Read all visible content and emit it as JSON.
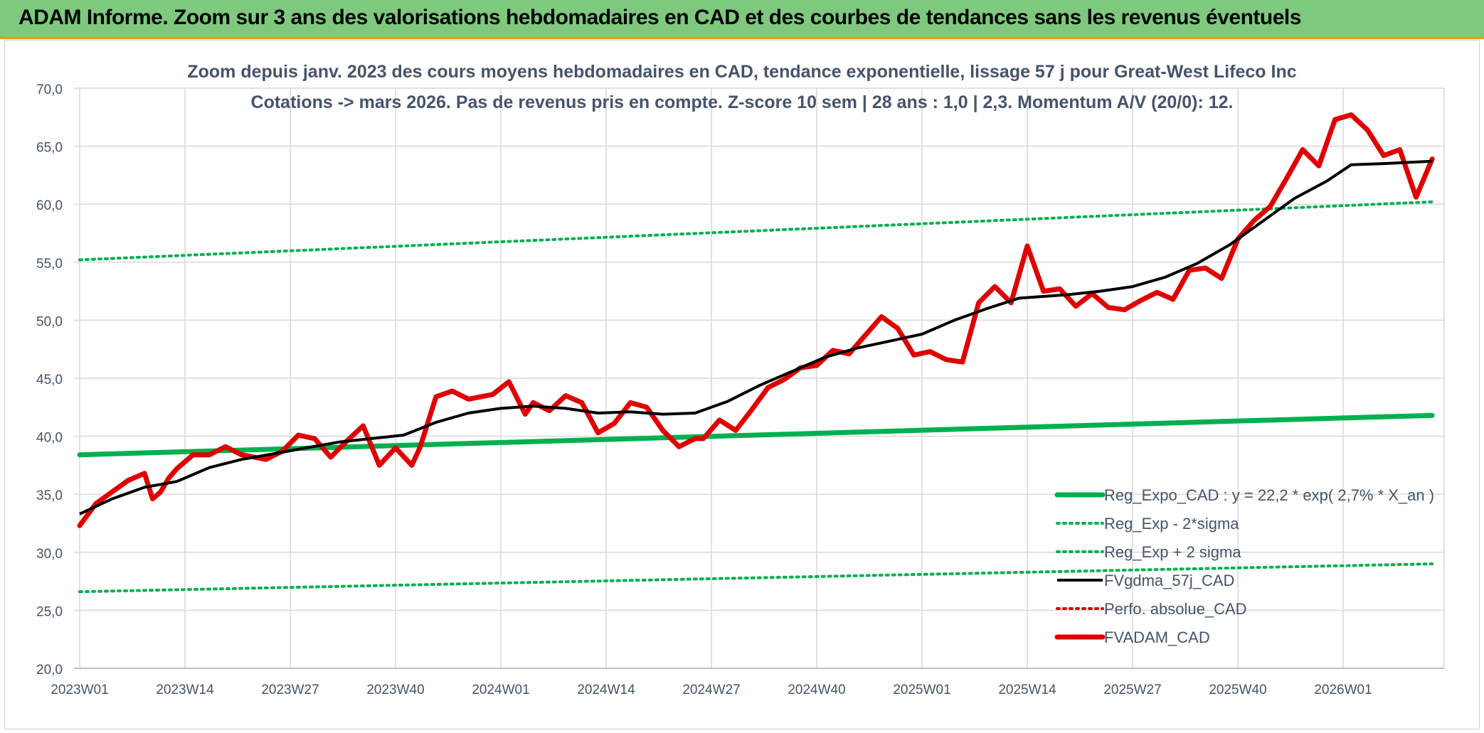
{
  "header": {
    "title": "ADAM Informe. Zoom sur 3 ans des valorisations hebdomadaires en CAD et des courbes de tendances sans les revenus éventuels"
  },
  "colors": {
    "header_bg": "#7ec97e",
    "reg_green": "#00b050",
    "price_red": "#e00000",
    "moving_avg": "#000000",
    "grid": "#d9d9d9"
  },
  "chart_data": {
    "type": "line",
    "title": "Zoom depuis janv. 2023 des cours moyens hebdomadaires en CAD, tendance exponentielle, lissage 57 j pour Great-West Lifeco Inc",
    "subtitle": "Cotations -> mars 2026. Pas de revenus pris en compte. Z-score 10 sem | 28 ans : 1,0 | 2,3. Momentum A/V (20/0): 12.",
    "xlabel": "",
    "ylabel": "",
    "ylim": [
      20,
      70
    ],
    "yticks": [
      "20,0",
      "25,0",
      "30,0",
      "35,0",
      "40,0",
      "45,0",
      "50,0",
      "55,0",
      "60,0",
      "65,0",
      "70,0"
    ],
    "xticks": [
      "2023W01",
      "2023W14",
      "2023W27",
      "2023W40",
      "2024W01",
      "2024W14",
      "2024W27",
      "2024W40",
      "2025W01",
      "2025W14",
      "2025W27",
      "2025W40",
      "2026W01"
    ],
    "grid": true,
    "legend_position": "bottom-right",
    "legend": [
      {
        "label": "Reg_Expo_CAD : y = 22,2 * exp( 2,7% *  X_an )",
        "color": "#00b050",
        "style": "solid-thick"
      },
      {
        "label": "Reg_Exp - 2*sigma",
        "color": "#00b050",
        "style": "dotted"
      },
      {
        "label": "Reg_Exp + 2 sigma",
        "color": "#00b050",
        "style": "dotted"
      },
      {
        "label": "FVgdma_57j_CAD",
        "color": "#000000",
        "style": "solid"
      },
      {
        "label": "Perfo. absolue_CAD",
        "color": "#e00000",
        "style": "dotted"
      },
      {
        "label": "FVADAM_CAD",
        "color": "#e00000",
        "style": "solid-thick"
      }
    ],
    "series": [
      {
        "name": "Reg_Expo_CAD : y = 22,2 * exp( 2,7% *  X_an )",
        "x": [
          "2023W01",
          "2026W12"
        ],
        "values": [
          38.4,
          41.8
        ]
      },
      {
        "name": "Reg_Exp - 2*sigma",
        "x": [
          "2023W01",
          "2026W12"
        ],
        "values": [
          26.6,
          29.0
        ]
      },
      {
        "name": "Reg_Exp + 2 sigma",
        "x": [
          "2023W01",
          "2026W12"
        ],
        "values": [
          55.2,
          60.2
        ]
      },
      {
        "name": "FVgdma_57j_CAD",
        "x": [
          "2023W01",
          "2023W05",
          "2023W09",
          "2023W13",
          "2023W17",
          "2023W21",
          "2023W25",
          "2023W29",
          "2023W33",
          "2023W37",
          "2023W41",
          "2023W45",
          "2023W49",
          "2024W01",
          "2024W05",
          "2024W09",
          "2024W13",
          "2024W17",
          "2024W21",
          "2024W25",
          "2024W29",
          "2024W33",
          "2024W37",
          "2024W41",
          "2024W45",
          "2024W49",
          "2025W01",
          "2025W05",
          "2025W09",
          "2025W13",
          "2025W15",
          "2025W19",
          "2025W23",
          "2025W27",
          "2025W31",
          "2025W35",
          "2025W39",
          "2025W43",
          "2025W47",
          "2025W51",
          "2026W02",
          "2026W06",
          "2026W12"
        ],
        "values": [
          33.3,
          34.6,
          35.6,
          36.1,
          37.3,
          38.0,
          38.5,
          39.0,
          39.5,
          39.8,
          40.1,
          41.2,
          42.0,
          42.4,
          42.6,
          42.4,
          42.0,
          42.1,
          41.9,
          42.0,
          43.0,
          44.4,
          45.6,
          46.8,
          47.6,
          48.2,
          48.8,
          50.0,
          51.0,
          51.9,
          52.0,
          52.2,
          52.5,
          52.9,
          53.7,
          54.9,
          56.5,
          58.5,
          60.5,
          62.0,
          63.4,
          63.5,
          63.7
        ]
      },
      {
        "name": "FVADAM_CAD",
        "x": [
          "2023W01",
          "2023W03",
          "2023W05",
          "2023W07",
          "2023W09",
          "2023W10",
          "2023W11",
          "2023W12",
          "2023W13",
          "2023W15",
          "2023W17",
          "2023W19",
          "2023W21",
          "2023W24",
          "2023W26",
          "2023W28",
          "2023W30",
          "2023W32",
          "2023W34",
          "2023W36",
          "2023W38",
          "2023W40",
          "2023W42",
          "2023W43",
          "2023W45",
          "2023W47",
          "2023W49",
          "2023W52",
          "2024W02",
          "2024W04",
          "2024W05",
          "2024W07",
          "2024W09",
          "2024W11",
          "2024W13",
          "2024W15",
          "2024W17",
          "2024W19",
          "2024W21",
          "2024W23",
          "2024W25",
          "2024W26",
          "2024W28",
          "2024W30",
          "2024W32",
          "2024W34",
          "2024W36",
          "2024W38",
          "2024W40",
          "2024W42",
          "2024W44",
          "2024W46",
          "2024W48",
          "2024W50",
          "2024W52",
          "2025W02",
          "2025W04",
          "2025W06",
          "2025W08",
          "2025W10",
          "2025W12",
          "2025W14",
          "2025W16",
          "2025W18",
          "2025W20",
          "2025W22",
          "2025W24",
          "2025W26",
          "2025W28",
          "2025W30",
          "2025W32",
          "2025W34",
          "2025W36",
          "2025W38",
          "2025W40",
          "2025W42",
          "2025W44",
          "2025W46",
          "2025W48",
          "2025W50",
          "2025W52",
          "2026W02",
          "2026W04",
          "2026W06",
          "2026W08",
          "2026W10",
          "2026W12"
        ],
        "values": [
          32.3,
          34.2,
          35.2,
          36.2,
          36.8,
          34.6,
          35.2,
          36.4,
          37.2,
          38.4,
          38.4,
          39.1,
          38.4,
          38.0,
          38.7,
          40.1,
          39.8,
          38.2,
          39.6,
          40.9,
          37.5,
          39.0,
          37.5,
          39.0,
          43.4,
          43.9,
          43.2,
          43.6,
          44.7,
          41.9,
          42.9,
          42.2,
          43.5,
          42.9,
          40.3,
          41.1,
          42.9,
          42.5,
          40.5,
          39.1,
          39.8,
          39.8,
          41.4,
          40.5,
          42.3,
          44.2,
          44.9,
          45.9,
          46.1,
          47.4,
          47.1,
          48.7,
          50.3,
          49.3,
          47.0,
          47.3,
          46.6,
          46.4,
          51.5,
          52.9,
          51.5,
          56.4,
          52.5,
          52.7,
          51.2,
          52.3,
          51.1,
          50.9,
          51.7,
          52.4,
          51.8,
          54.3,
          54.5,
          53.6,
          57.0,
          58.6,
          59.8,
          62.2,
          64.7,
          63.3,
          67.3,
          67.7,
          66.4,
          64.2,
          64.7,
          60.6,
          63.9
        ]
      }
    ]
  }
}
